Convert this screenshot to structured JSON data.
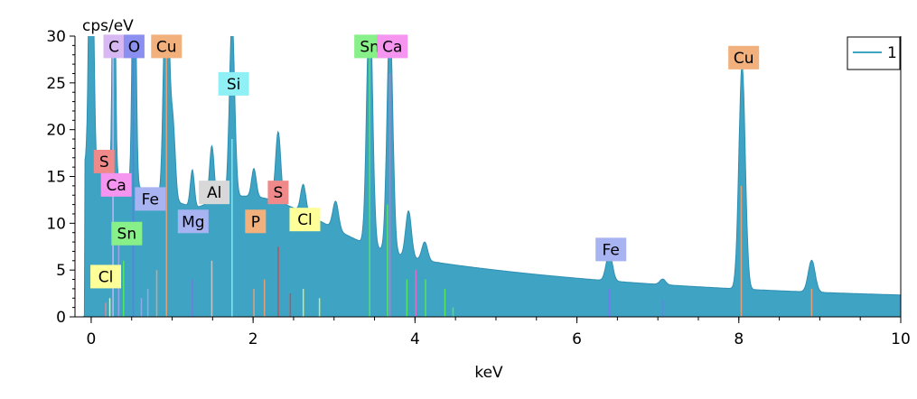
{
  "chart_data": {
    "type": "area",
    "xlabel": "keV",
    "ylabel": "cps/eV",
    "xlim": [
      -0.2,
      10
    ],
    "ylim": [
      0,
      30
    ],
    "x_ticks": [
      0,
      2,
      4,
      6,
      8,
      10
    ],
    "y_ticks": [
      0,
      5,
      10,
      15,
      20,
      25,
      30
    ],
    "series": [
      {
        "name": "1",
        "color": "#3fa3c4",
        "peaks": [
          {
            "x": 0.0,
            "y": 40,
            "w": 0.035
          },
          {
            "x": 0.28,
            "y": 31,
            "w": 0.025
          },
          {
            "x": 0.53,
            "y": 32,
            "w": 0.03
          },
          {
            "x": 0.93,
            "y": 29,
            "w": 0.045
          },
          {
            "x": 1.01,
            "y": 8,
            "w": 0.04
          },
          {
            "x": 1.25,
            "y": 4,
            "w": 0.035
          },
          {
            "x": 1.49,
            "y": 6,
            "w": 0.04
          },
          {
            "x": 1.74,
            "y": 19,
            "w": 0.045
          },
          {
            "x": 2.01,
            "y": 3,
            "w": 0.04
          },
          {
            "x": 2.31,
            "y": 7.5,
            "w": 0.045
          },
          {
            "x": 2.62,
            "y": 3,
            "w": 0.045
          },
          {
            "x": 3.02,
            "y": 3,
            "w": 0.05
          },
          {
            "x": 3.44,
            "y": 27,
            "w": 0.05
          },
          {
            "x": 3.69,
            "y": 25,
            "w": 0.05
          },
          {
            "x": 3.92,
            "y": 5,
            "w": 0.05
          },
          {
            "x": 4.12,
            "y": 2,
            "w": 0.05
          },
          {
            "x": 6.4,
            "y": 3,
            "w": 0.055
          },
          {
            "x": 7.06,
            "y": 0.6,
            "w": 0.05
          },
          {
            "x": 8.04,
            "y": 24,
            "w": 0.055
          },
          {
            "x": 8.9,
            "y": 3.4,
            "w": 0.06
          }
        ]
      }
    ],
    "element_lines": [
      {
        "x": 0.18,
        "h": 1.5,
        "color": "#f08a8a"
      },
      {
        "x": 0.23,
        "h": 2.0,
        "color": "#ffff66"
      },
      {
        "x": 0.27,
        "h": 30,
        "color": "#d8b8f2"
      },
      {
        "x": 0.34,
        "h": 8,
        "color": "#ff77ee"
      },
      {
        "x": 0.4,
        "h": 6,
        "color": "#55ee55"
      },
      {
        "x": 0.52,
        "h": 30,
        "color": "#7070ee"
      },
      {
        "x": 0.62,
        "h": 2,
        "color": "#99aaee"
      },
      {
        "x": 0.7,
        "h": 3,
        "color": "#99aaee"
      },
      {
        "x": 0.81,
        "h": 5,
        "color": "#f2a070"
      },
      {
        "x": 0.93,
        "h": 30,
        "color": "#f2a070"
      },
      {
        "x": 1.25,
        "h": 4,
        "color": "#7777dd"
      },
      {
        "x": 1.49,
        "h": 6,
        "color": "#cccccc"
      },
      {
        "x": 1.74,
        "h": 19,
        "color": "#88eeff"
      },
      {
        "x": 2.01,
        "h": 3,
        "color": "#f2a070"
      },
      {
        "x": 2.14,
        "h": 4,
        "color": "#f2a070"
      },
      {
        "x": 2.31,
        "h": 7.5,
        "color": "#e04040"
      },
      {
        "x": 2.46,
        "h": 2.5,
        "color": "#e04040"
      },
      {
        "x": 2.62,
        "h": 3,
        "color": "#eeee66"
      },
      {
        "x": 2.82,
        "h": 2,
        "color": "#eeee66"
      },
      {
        "x": 3.44,
        "h": 30,
        "color": "#55ee55"
      },
      {
        "x": 3.66,
        "h": 12,
        "color": "#55ee55"
      },
      {
        "x": 3.69,
        "h": 26,
        "color": "#ee66cc"
      },
      {
        "x": 3.9,
        "h": 4,
        "color": "#55ee55"
      },
      {
        "x": 4.01,
        "h": 5,
        "color": "#ee66cc"
      },
      {
        "x": 4.13,
        "h": 4,
        "color": "#55ee55"
      },
      {
        "x": 4.37,
        "h": 3,
        "color": "#55ee55"
      },
      {
        "x": 4.47,
        "h": 1,
        "color": "#55ee55"
      },
      {
        "x": 6.4,
        "h": 3,
        "color": "#7777ee"
      },
      {
        "x": 7.06,
        "h": 1.8,
        "color": "#7777ee"
      },
      {
        "x": 8.03,
        "h": 14,
        "color": "#f2a070"
      },
      {
        "x": 8.9,
        "h": 3,
        "color": "#f2a070"
      }
    ],
    "element_labels": [
      {
        "text": "C",
        "x": 0.28,
        "y": 28.9,
        "color": "#d8b8f2"
      },
      {
        "text": "O",
        "x": 0.53,
        "y": 28.9,
        "color": "#8b8ff0"
      },
      {
        "text": "Cu",
        "x": 0.93,
        "y": 28.9,
        "color": "#f2b07c"
      },
      {
        "text": "Si",
        "x": 1.76,
        "y": 24.9,
        "color": "#8ff0f5"
      },
      {
        "text": "S",
        "x": 0.16,
        "y": 16.6,
        "color": "#f08a8a"
      },
      {
        "text": "Ca",
        "x": 0.31,
        "y": 14.1,
        "color": "#f595f0"
      },
      {
        "text": "Fe",
        "x": 0.73,
        "y": 12.6,
        "color": "#a8b4f2"
      },
      {
        "text": "Al",
        "x": 1.52,
        "y": 13.3,
        "color": "#d8d8d8"
      },
      {
        "text": "S",
        "x": 2.31,
        "y": 13.3,
        "color": "#f08a8a"
      },
      {
        "text": "Mg",
        "x": 1.26,
        "y": 10.2,
        "color": "#a8b4f2"
      },
      {
        "text": "P",
        "x": 2.03,
        "y": 10.2,
        "color": "#f2b07c"
      },
      {
        "text": "Cl",
        "x": 2.64,
        "y": 10.4,
        "color": "#ffff99"
      },
      {
        "text": "Sn",
        "x": 0.44,
        "y": 8.9,
        "color": "#88f088"
      },
      {
        "text": "Cl",
        "x": 0.18,
        "y": 4.3,
        "color": "#ffff99"
      },
      {
        "text": "Sn",
        "x": 3.44,
        "y": 28.9,
        "color": "#88f088"
      },
      {
        "text": "Ca",
        "x": 3.72,
        "y": 28.9,
        "color": "#f595f0"
      },
      {
        "text": "Fe",
        "x": 6.42,
        "y": 7.2,
        "color": "#a8b4f2"
      },
      {
        "text": "Cu",
        "x": 8.06,
        "y": 27.7,
        "color": "#f2b07c"
      }
    ],
    "legend": {
      "entries": [
        "1"
      ],
      "position": "top-right"
    }
  }
}
